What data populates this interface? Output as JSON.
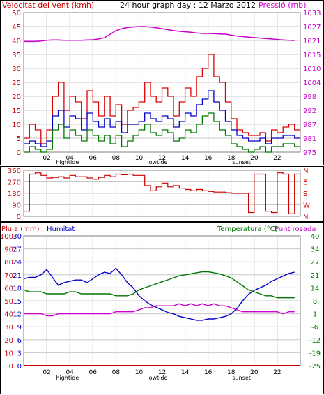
{
  "header": {
    "title": "24 hour graph day : 12 Marzo 2012",
    "wind_label": "Velocitat del vent (kmh)",
    "pressure_label": "Pressió (mb)",
    "rain_label": "Pluja (mm)",
    "humidity_label": "Humitat",
    "temp_label": "Temperatura (°C)",
    "dew_label": "Punt rosada"
  },
  "colors": {
    "wind_gust": "#dd0000",
    "wind_avg": "#0000cc",
    "wind_low": "#007700",
    "pressure": "#cc00cc",
    "direction": "#cc0000",
    "humidity": "#0000cc",
    "temperature": "#007700",
    "dewpoint": "#cc00cc",
    "rain": "#cc0000",
    "grid": "#c8c8c8",
    "axis_red": "#cc0000",
    "axis_magenta": "#cc00cc",
    "axis_green": "#007700",
    "axis_blue": "#0000cc"
  },
  "chart_data": [
    {
      "id": "wind",
      "type": "line",
      "title": "24 hour graph day : 12 Marzo 2012",
      "ylabel_left": "Velocitat del vent (kmh)",
      "ylabel_right": "Pressió (mb)",
      "x_ticks": [
        {
          "x": 2,
          "label": "02"
        },
        {
          "x": 4,
          "label": "04"
        },
        {
          "x": 6,
          "label": "06"
        },
        {
          "x": 8,
          "label": "08"
        },
        {
          "x": 10,
          "label": "10"
        },
        {
          "x": 12,
          "label": "12"
        },
        {
          "x": 14,
          "label": "14"
        },
        {
          "x": 16,
          "label": "16"
        },
        {
          "x": 18,
          "label": "18"
        },
        {
          "x": 20,
          "label": "20"
        },
        {
          "x": 22,
          "label": "22"
        }
      ],
      "x_tide_labels": [
        {
          "x": 3.8,
          "label": "hightide"
        },
        {
          "x": 11.6,
          "label": "lowtide"
        },
        {
          "x": 18.9,
          "label": "sunset"
        }
      ],
      "xlim": [
        0,
        24
      ],
      "ylim_left": [
        0,
        50
      ],
      "y_ticks_left": [
        "0",
        "5",
        "10",
        "15",
        "20",
        "25",
        "30",
        "35",
        "40",
        "45",
        "50"
      ],
      "ylim_right": [
        975,
        1033
      ],
      "y_ticks_right": [
        "975",
        "981",
        "987",
        "992",
        "998",
        "1004",
        "1010",
        "1015",
        "1021",
        "1027",
        "1033"
      ],
      "x": [
        0,
        0.5,
        1,
        1.5,
        2,
        2.5,
        3,
        3.5,
        4,
        4.5,
        5,
        5.5,
        6,
        6.5,
        7,
        7.5,
        8,
        8.5,
        9,
        9.5,
        10,
        10.5,
        11,
        11.5,
        12,
        12.5,
        13,
        13.5,
        14,
        14.5,
        15,
        15.5,
        16,
        16.5,
        17,
        17.5,
        18,
        18.5,
        19,
        19.5,
        20,
        20.5,
        21,
        21.5,
        22,
        22.5,
        23,
        23.5
      ],
      "series": [
        {
          "name": "gust",
          "values": [
            5,
            10,
            8,
            3,
            8,
            20,
            25,
            15,
            20,
            18,
            12,
            22,
            18,
            13,
            20,
            13,
            17,
            10,
            15,
            16,
            18,
            25,
            20,
            18,
            23,
            20,
            13,
            18,
            23,
            20,
            27,
            30,
            35,
            27,
            25,
            18,
            12,
            8,
            7,
            6,
            6,
            7,
            4,
            8,
            7,
            9,
            10,
            8
          ]
        },
        {
          "name": "avg",
          "values": [
            3,
            4,
            3,
            2,
            4,
            13,
            15,
            9,
            13,
            12,
            8,
            14,
            11,
            9,
            12,
            9,
            11,
            7,
            10,
            10,
            11,
            14,
            12,
            11,
            13,
            12,
            9,
            11,
            14,
            13,
            17,
            19,
            22,
            18,
            15,
            11,
            8,
            6,
            5,
            4,
            4,
            5,
            3,
            5,
            5,
            6,
            6,
            5
          ]
        },
        {
          "name": "low",
          "values": [
            0,
            2,
            1,
            0,
            1,
            8,
            10,
            5,
            8,
            6,
            4,
            8,
            6,
            4,
            6,
            3,
            6,
            2,
            4,
            6,
            8,
            10,
            7,
            6,
            8,
            7,
            4,
            5,
            8,
            7,
            10,
            13,
            14,
            11,
            8,
            6,
            3,
            2,
            1,
            0,
            1,
            2,
            0,
            2,
            2,
            3,
            3,
            2
          ]
        },
        {
          "name": "Pressió (mb)",
          "axis": "right",
          "values": [
            1021,
            1021,
            1021,
            1021.2,
            1021.5,
            1021.6,
            1021.6,
            1021.5,
            1021.5,
            1021.5,
            1021.5,
            1021.6,
            1021.7,
            1022,
            1022.5,
            1024,
            1025.5,
            1026.3,
            1026.8,
            1027,
            1027.2,
            1027.2,
            1027,
            1026.7,
            1026.3,
            1025.9,
            1025.5,
            1025.2,
            1025,
            1024.8,
            1024.5,
            1024.3,
            1024.3,
            1024.2,
            1024.1,
            1024,
            1023.6,
            1023.2,
            1023,
            1022.8,
            1022.6,
            1022.4,
            1022.2,
            1022,
            1021.8,
            1021.6,
            1021.5,
            1021.4
          ]
        }
      ]
    },
    {
      "id": "direction",
      "type": "line",
      "xlim": [
        0,
        24
      ],
      "ylim": [
        0,
        360
      ],
      "y_ticks_left": [
        "0",
        "90",
        "180",
        "270",
        "360"
      ],
      "y_ticks_right": [
        "N",
        "W",
        "S",
        "E",
        "N"
      ],
      "x": [
        0,
        0.5,
        1,
        1.5,
        2,
        2.5,
        3,
        3.5,
        4,
        4.5,
        5,
        5.5,
        6,
        6.5,
        7,
        7.5,
        8,
        8.5,
        9,
        9.5,
        10,
        10.5,
        11,
        11.5,
        12,
        12.5,
        13,
        13.5,
        14,
        14.5,
        15,
        15.5,
        16,
        16.5,
        17,
        17.5,
        18,
        18.5,
        19,
        19.5,
        20,
        20.5,
        21,
        21.5,
        22,
        22.5,
        23,
        23.5
      ],
      "series": [
        {
          "name": "direction",
          "values": [
            40,
            330,
            340,
            320,
            300,
            305,
            310,
            300,
            320,
            310,
            310,
            300,
            290,
            305,
            320,
            310,
            330,
            325,
            330,
            320,
            320,
            240,
            200,
            230,
            260,
            230,
            240,
            220,
            210,
            200,
            210,
            200,
            195,
            190,
            190,
            185,
            180,
            180,
            180,
            30,
            330,
            330,
            40,
            30,
            340,
            330,
            20,
            330
          ]
        }
      ]
    },
    {
      "id": "rain-humidity-temp",
      "type": "line",
      "ylabel_left": "Pluja (mm)",
      "ylabel_left2": "Humitat",
      "ylabel_right": "Temperatura (°C)",
      "ylabel_right2": "Punt rosada",
      "xlim": [
        0,
        24
      ],
      "ylim_humidity": [
        0,
        100
      ],
      "y_ticks_humidity": [
        "0",
        "10",
        "20",
        "30",
        "40",
        "50",
        "60",
        "70",
        "80",
        "90",
        "100"
      ],
      "y_ticks_rain": [
        "0",
        "3",
        "6",
        "9",
        "12",
        "15",
        "18",
        "21",
        "24",
        "27",
        "30"
      ],
      "ylim_temp": [
        -25,
        40
      ],
      "y_ticks_temp": [
        "-25",
        "-19",
        "-12",
        "-6",
        "1",
        "8",
        "14",
        "21",
        "27",
        "34",
        "40"
      ],
      "x": [
        0,
        0.5,
        1,
        1.5,
        2,
        2.5,
        3,
        3.5,
        4,
        4.5,
        5,
        5.5,
        6,
        6.5,
        7,
        7.5,
        8,
        8.5,
        9,
        9.5,
        10,
        10.5,
        11,
        11.5,
        12,
        12.5,
        13,
        13.5,
        14,
        14.5,
        15,
        15.5,
        16,
        16.5,
        17,
        17.5,
        18,
        18.5,
        19,
        19.5,
        20,
        20.5,
        21,
        21.5,
        22,
        22.5,
        23,
        23.5
      ],
      "series": [
        {
          "name": "Humitat",
          "axis": "humidity",
          "values": [
            67,
            68,
            68,
            70,
            74,
            68,
            62,
            64,
            65,
            66,
            66,
            64,
            67,
            70,
            72,
            71,
            75,
            70,
            64,
            60,
            54,
            50,
            47,
            45,
            43,
            41,
            40,
            38,
            37,
            36,
            35,
            35,
            36,
            36,
            37,
            38,
            40,
            44,
            50,
            55,
            58,
            60,
            62,
            65,
            67,
            69,
            71,
            72
          ]
        },
        {
          "name": "Temperatura (°C)",
          "axis": "temp",
          "values": [
            13,
            12,
            12,
            12,
            11,
            11,
            11,
            11,
            12,
            12,
            11,
            11,
            11,
            11,
            11,
            11,
            10,
            10,
            10,
            11,
            13,
            14,
            15,
            16,
            17,
            18,
            19,
            20,
            20.5,
            21,
            21.5,
            22,
            22,
            21.5,
            21,
            20,
            19,
            17,
            15,
            13,
            12,
            11,
            10,
            10,
            9,
            9,
            9,
            9
          ]
        },
        {
          "name": "Punt rosada",
          "axis": "temp",
          "values": [
            1,
            1,
            1,
            1,
            0,
            0,
            1,
            1,
            1,
            1,
            1,
            1,
            1,
            1,
            1,
            1,
            2,
            2,
            2,
            2,
            3,
            4,
            4,
            5,
            5,
            5,
            5,
            6,
            5,
            6,
            5,
            6,
            5,
            6,
            5,
            5,
            4,
            3,
            2,
            2,
            2,
            2,
            2,
            2,
            2,
            1,
            2,
            2
          ]
        },
        {
          "name": "Pluja (mm)",
          "axis": "rain",
          "values": [
            0,
            0,
            0,
            0,
            0,
            0,
            0,
            0,
            0,
            0,
            0,
            0,
            0,
            0,
            0,
            0,
            0,
            0,
            0,
            0,
            0,
            0,
            0,
            0,
            0,
            0,
            0,
            0,
            0,
            0,
            0,
            0,
            0,
            0,
            0,
            0,
            0,
            0,
            0,
            0,
            0,
            0,
            0,
            0,
            0,
            0,
            0,
            0
          ]
        }
      ],
      "x_ticks": [
        {
          "x": 2,
          "label": "02"
        },
        {
          "x": 4,
          "label": "04"
        },
        {
          "x": 6,
          "label": "06"
        },
        {
          "x": 8,
          "label": "08"
        },
        {
          "x": 10,
          "label": "10"
        },
        {
          "x": 12,
          "label": "12"
        },
        {
          "x": 14,
          "label": "14"
        },
        {
          "x": 16,
          "label": "16"
        },
        {
          "x": 18,
          "label": "18"
        },
        {
          "x": 20,
          "label": "20"
        },
        {
          "x": 22,
          "label": "22"
        }
      ],
      "x_tide_labels": [
        {
          "x": 3.8,
          "label": "hightide"
        },
        {
          "x": 11.6,
          "label": "lowtide"
        },
        {
          "x": 18.9,
          "label": "sunset"
        }
      ]
    }
  ]
}
